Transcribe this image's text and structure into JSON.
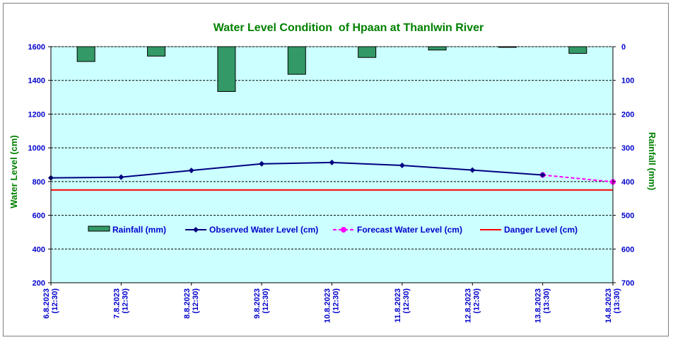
{
  "chart_data": {
    "type": "line",
    "title": "Water Level Condition  of Hpaan at Thanlwin River",
    "ylabel": "Water Level (cm)",
    "y2label": "Rainfall (mm)",
    "ylim": [
      200,
      1600
    ],
    "y_ticks": [
      "200",
      "400",
      "600",
      "800",
      "1000",
      "1200",
      "1400",
      "1600"
    ],
    "y2lim": [
      0,
      700
    ],
    "y2_reversed": true,
    "y2_ticks": [
      "0",
      "100",
      "200",
      "300",
      "400",
      "500",
      "600",
      "700"
    ],
    "categories": [
      [
        "6.8.2023",
        "(12:30)"
      ],
      [
        "7.8.2023",
        "(12:30)"
      ],
      [
        "8.8.2023",
        "(12:30)"
      ],
      [
        "9.8.2023",
        "(12:30)"
      ],
      [
        "10.8.2023",
        "(12:30)"
      ],
      [
        "11.8.2023",
        "(12:30)"
      ],
      [
        "12.8.2023",
        "(12:30)"
      ],
      [
        "13.8.2023",
        "(13:30)"
      ],
      [
        "14.8.2023",
        "(13:30)"
      ]
    ],
    "series": [
      {
        "name": "Rainfall (mm)",
        "type": "bar",
        "axis": "right",
        "color": "#339966",
        "values": [
          44,
          28,
          133,
          82,
          32,
          10,
          2,
          20,
          null
        ]
      },
      {
        "name": "Observed Water Level (cm)",
        "type": "line",
        "axis": "left",
        "color": "#000080",
        "marker": "diamond",
        "values": [
          822,
          826,
          866,
          905,
          913,
          896,
          868,
          839,
          null
        ]
      },
      {
        "name": "Forecast Water Level (cm)",
        "type": "line",
        "axis": "left",
        "color": "#ff00ff",
        "marker": "circle",
        "dashed": true,
        "values": [
          null,
          null,
          null,
          null,
          null,
          null,
          null,
          839,
          798
        ]
      },
      {
        "name": "Danger Level (cm)",
        "type": "line",
        "axis": "left",
        "color": "#ff0000",
        "values": [
          750,
          750,
          750,
          750,
          750,
          750,
          750,
          750,
          750
        ]
      }
    ],
    "grid": true,
    "legend_position": "inside-lower-middle",
    "colors": {
      "plot_background": "#ccffff",
      "title": "#008000",
      "axis_text": "#0000cc"
    }
  }
}
